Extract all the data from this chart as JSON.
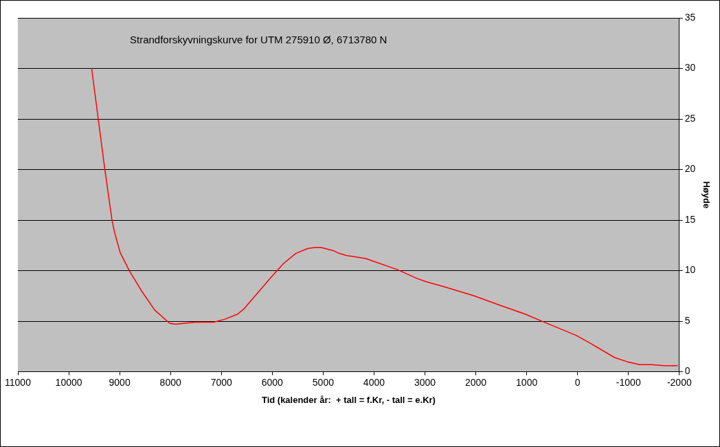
{
  "chart_data": {
    "type": "line",
    "title": "Strandforskyvningskurve for UTM 275910 Ø, 6713780 N",
    "xlabel": "Tid (kalender år:  + tall = f.Kr, - tall = e.Kr)",
    "ylabel": "Høyde",
    "x": [
      9550,
      9420,
      9290,
      9150,
      9100,
      8990,
      8810,
      8570,
      8310,
      8020,
      7900,
      7520,
      7150,
      6930,
      6680,
      6560,
      6320,
      6030,
      5780,
      5540,
      5300,
      5140,
      5050,
      4810,
      4680,
      4540,
      4160,
      3540,
      3140,
      2970,
      2620,
      2030,
      1540,
      1030,
      700,
      30,
      -220,
      -460,
      -730,
      -970,
      -1220,
      -1460,
      -1700,
      -1960
    ],
    "series": [
      {
        "color": "#ff0000",
        "values": [
          30,
          25,
          20,
          15,
          13.8,
          11.8,
          10,
          8,
          6.1,
          4.8,
          4.7,
          4.9,
          4.9,
          5.2,
          5.7,
          6.2,
          7.6,
          9.3,
          10.7,
          11.7,
          12.2,
          12.3,
          12.3,
          12,
          11.7,
          11.5,
          11.2,
          10.1,
          9.2,
          8.9,
          8.4,
          7.5,
          6.6,
          5.7,
          5,
          3.6,
          2.9,
          2.2,
          1.4,
          1,
          0.7,
          0.7,
          0.6,
          0.6
        ]
      }
    ],
    "xlim": [
      11000,
      -2000
    ],
    "xticks": [
      11000,
      10000,
      9000,
      8000,
      7000,
      6000,
      5000,
      4000,
      3000,
      2000,
      1000,
      0,
      -1000,
      -2000
    ],
    "ylim": [
      0,
      35
    ],
    "yticks": [
      0,
      5,
      10,
      15,
      20,
      25,
      30,
      35
    ],
    "grid": "y",
    "legend": false,
    "marker": "none",
    "line_style": "solid"
  }
}
